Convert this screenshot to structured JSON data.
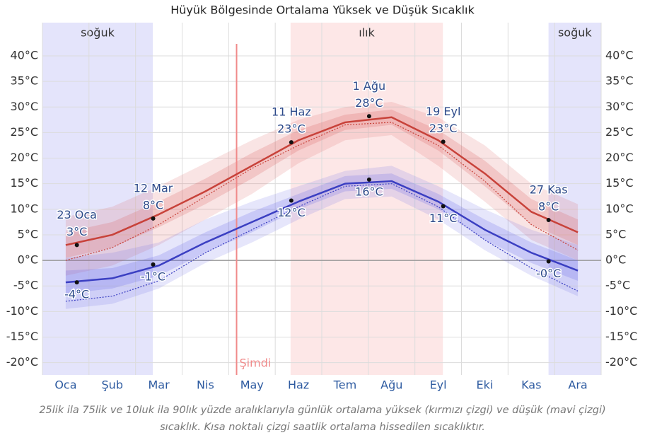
{
  "chart_data": {
    "type": "line",
    "title": "Hüyük Bölgesinde Ortalama Yüksek ve Düşük Sıcaklık",
    "caption": "25lik ila 75lik ve 10luk ila 90lık yüzde aralıklarıyla günlük ortalama yüksek (kırmızı çizgi) ve düşük (mavi çizgi) sıcaklık. Kısa noktalı çizgi saatlik ortalama hissedilen sıcaklıktır.",
    "categories": [
      "Oca",
      "Şub",
      "Mar",
      "Nis",
      "May",
      "Haz",
      "Tem",
      "Ağu",
      "Eyl",
      "Eki",
      "Kas",
      "Ara"
    ],
    "ylim": [
      -22.4,
      46.5
    ],
    "yticks": [
      {
        "value": 40,
        "label": "40°C"
      },
      {
        "value": 35,
        "label": "35°C"
      },
      {
        "value": 30,
        "label": "30°C"
      },
      {
        "value": 25,
        "label": "25°C"
      },
      {
        "value": 20,
        "label": "20°C"
      },
      {
        "value": 15,
        "label": "15°C"
      },
      {
        "value": 10,
        "label": "10°C"
      },
      {
        "value": 5,
        "label": "5°C"
      },
      {
        "value": 0,
        "label": "0°C"
      },
      {
        "value": -5,
        "label": "-5°C"
      },
      {
        "value": -10,
        "label": "-10°C"
      },
      {
        "value": -15,
        "label": "-15°C"
      },
      {
        "value": -20,
        "label": "-20°C"
      }
    ],
    "grid": true,
    "regions": [
      {
        "label": "soğuk",
        "start": 0,
        "end": 2.37,
        "color": "#e4e4fb"
      },
      {
        "label": "ılık",
        "start": 5.33,
        "end": 8.6,
        "color": "#fde7e7"
      },
      {
        "label": "soğuk",
        "start": 10.87,
        "end": 12,
        "color": "#e4e4fb"
      }
    ],
    "now": {
      "label": "Şimdi",
      "x": 4.17,
      "color": "#f08a8a"
    },
    "bands": [
      {
        "color": "rgba(220,90,90,0.16)",
        "lower": [
          -3,
          -1,
          3,
          8,
          13,
          19,
          23.5,
          24.5,
          18.5,
          11.5,
          4,
          0
        ],
        "upper": [
          8.5,
          10.5,
          14.5,
          19,
          23.5,
          27.5,
          30,
          31,
          28,
          22.5,
          15,
          11
        ]
      },
      {
        "color": "rgba(220,90,90,0.22)",
        "lower": [
          0.5,
          2.5,
          6.5,
          11,
          16,
          21.5,
          25.5,
          26.5,
          21.5,
          14.5,
          7,
          3
        ],
        "upper": [
          5.5,
          7.5,
          11.5,
          16,
          21,
          25.5,
          28.5,
          29.5,
          25.5,
          19.5,
          12,
          8
        ]
      },
      {
        "color": "rgba(100,100,230,0.16)",
        "lower": [
          -9.5,
          -8.5,
          -5.5,
          -0.5,
          3.5,
          8,
          12,
          12.5,
          8,
          2,
          -3,
          -7
        ],
        "upper": [
          0.5,
          1.5,
          3.5,
          8,
          11.5,
          14.5,
          17.5,
          18.5,
          14.5,
          10,
          6,
          3
        ]
      },
      {
        "color": "rgba(100,100,230,0.22)",
        "lower": [
          -6.5,
          -5.5,
          -3,
          1.5,
          5.5,
          10,
          13.5,
          14,
          10,
          4,
          -0.5,
          -4
        ],
        "upper": [
          -2,
          -1.5,
          1,
          5.5,
          9.5,
          13,
          16.5,
          17,
          13,
          8,
          3.5,
          0
        ]
      }
    ],
    "series": [
      {
        "color": "#c8423a",
        "dash": false,
        "values": [
          3,
          5,
          9,
          13.5,
          18.5,
          23.5,
          27,
          28,
          23.5,
          17,
          9.5,
          5.5
        ]
      },
      {
        "color": "#3b3fc2",
        "dash": false,
        "values": [
          -4.3,
          -3.5,
          -1,
          3.5,
          7.5,
          11.5,
          15,
          15.5,
          11.5,
          6,
          1.5,
          -2
        ]
      },
      {
        "color": "#c8423a",
        "dash": true,
        "values": [
          0,
          2.5,
          7,
          12.5,
          18,
          22.5,
          26.5,
          27,
          22.5,
          15.5,
          7,
          2
        ]
      },
      {
        "color": "#3b3fc2",
        "dash": true,
        "values": [
          -8,
          -7,
          -4,
          1.5,
          6,
          10.5,
          14.5,
          15,
          10.5,
          4,
          -1.5,
          -6
        ]
      }
    ],
    "annotations": [
      {
        "date": "23 Oca",
        "high": 3,
        "high_label": "3°C",
        "low": -4.3,
        "low_label": "-4°C"
      },
      {
        "date": "12 Mar",
        "high": 8.2,
        "high_label": "8°C",
        "low": -0.8,
        "low_label": "-1°C"
      },
      {
        "date": "11 Haz",
        "high": 23.1,
        "high_label": "23°C",
        "low": 11.7,
        "low_label": "12°C"
      },
      {
        "date": "1 Ağu",
        "high": 28.2,
        "high_label": "28°C",
        "low": 15.8,
        "low_label": "16°C"
      },
      {
        "date": "19 Eyl",
        "high": 23.2,
        "high_label": "23°C",
        "low": 10.6,
        "low_label": "11°C"
      },
      {
        "date": "27 Kas",
        "high": 7.9,
        "high_label": "8°C",
        "low": -0.2,
        "low_label": "-0°C"
      }
    ]
  }
}
